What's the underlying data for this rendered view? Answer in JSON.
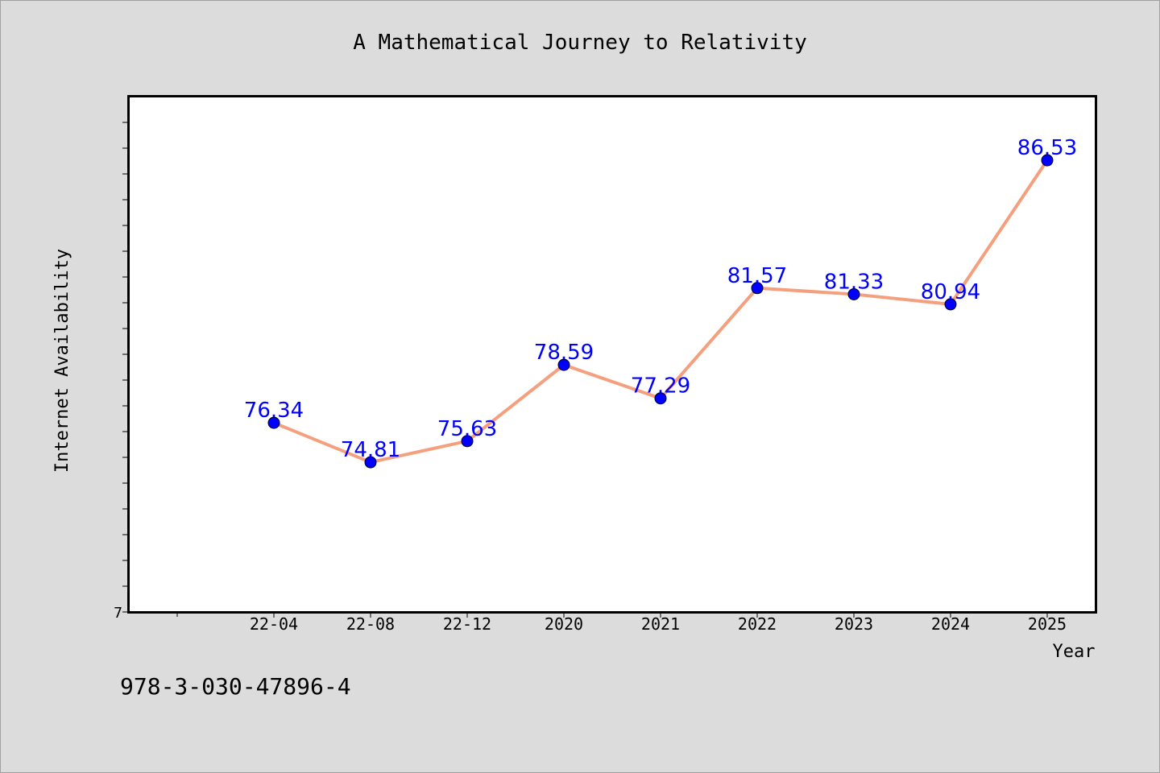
{
  "chart_data": {
    "type": "line",
    "title": "A Mathematical Journey to Relativity",
    "xlabel": "Year",
    "ylabel": "Internet Availability",
    "categories": [
      "22-04",
      "22-08",
      "22-12",
      "2020",
      "2021",
      "2022",
      "2023",
      "2024",
      "2025"
    ],
    "values": [
      76.34,
      74.81,
      75.63,
      78.59,
      77.29,
      81.57,
      81.33,
      80.94,
      86.53
    ],
    "data_labels": [
      "76.34",
      "74.81",
      "75.63",
      "78.59",
      "77.29",
      "81.57",
      "81.33",
      "80.94",
      "86.53"
    ],
    "ylim": [
      69,
      89
    ],
    "y_tick_labels": [
      "7"
    ],
    "grid": false,
    "legend": "none",
    "line_color": "#f4a07e",
    "marker_color": "#0000ff",
    "label_color": "#0000ff"
  },
  "footer": {
    "isbn": "978-3-030-47896-4"
  }
}
